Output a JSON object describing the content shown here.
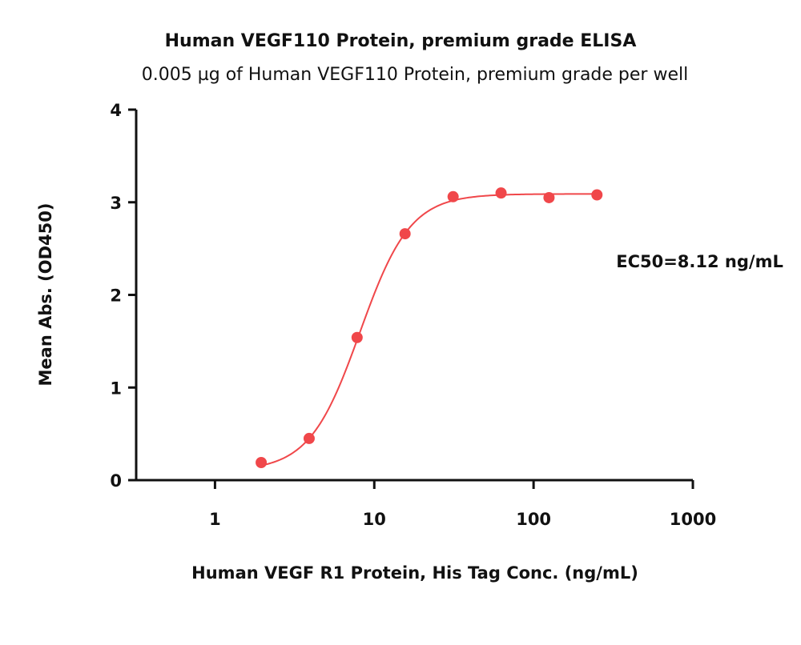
{
  "chart_data": {
    "type": "scatter",
    "title": "Human VEGF110 Protein, premium grade ELISA",
    "subtitle": "0.005 µg of Human VEGF110 Protein, premium grade per well",
    "xlabel": "Human VEGF R1 Protein, His Tag Conc. (ng/mL)",
    "ylabel": "Mean Abs. (OD450)",
    "x_scale": "log",
    "xlim": [
      0.32,
      1000
    ],
    "ylim": [
      0,
      4
    ],
    "x_ticks": [
      1,
      10,
      100,
      1000
    ],
    "x_tick_labels": [
      "1",
      "10",
      "100",
      "1000"
    ],
    "y_ticks": [
      0,
      1,
      2,
      3,
      4
    ],
    "y_tick_labels": [
      "0",
      "1",
      "2",
      "3",
      "4"
    ],
    "grid": false,
    "series": [
      {
        "color": "#f0474a",
        "x": [
          1.95,
          3.9,
          7.8,
          15.6,
          31.25,
          62.5,
          125,
          250
        ],
        "y": [
          0.19,
          0.45,
          1.54,
          2.66,
          3.06,
          3.1,
          3.05,
          3.08
        ],
        "fit": {
          "model": "4PL",
          "bottom": 0.1,
          "top": 3.09,
          "ec50": 8.12,
          "hill": 2.75,
          "x_range": [
            1.95,
            250
          ]
        }
      }
    ],
    "annotations": [
      {
        "text": "EC50=8.12 ng/mL",
        "x": 330,
        "y": 2.3
      }
    ]
  }
}
